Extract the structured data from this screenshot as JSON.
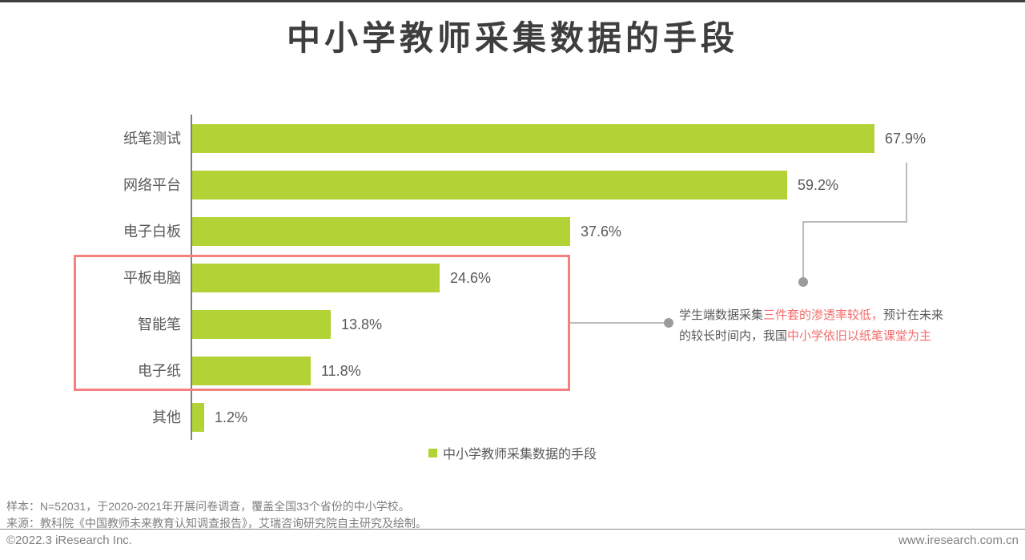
{
  "title": "中小学教师采集数据的手段",
  "chart_data": {
    "type": "bar",
    "orientation": "horizontal",
    "title": "中小学教师采集数据的手段",
    "categories": [
      "纸笔测试",
      "网络平台",
      "电子白板",
      "平板电脑",
      "智能笔",
      "电子纸",
      "其他"
    ],
    "values": [
      67.9,
      59.2,
      37.6,
      24.6,
      13.8,
      11.8,
      1.2
    ],
    "value_labels": [
      "67.9%",
      "59.2%",
      "37.6%",
      "24.6%",
      "13.8%",
      "11.8%",
      "1.2%"
    ],
    "unit": "%",
    "xlim": [
      0,
      75
    ],
    "grid": false,
    "bar_color": "#b2d235",
    "highlighted_categories": [
      "平板电脑",
      "智能笔",
      "电子纸"
    ],
    "legend_position": "bottom-center"
  },
  "annotation": {
    "lines": [
      [
        {
          "text": "学生端数据采集",
          "color": "gray"
        },
        {
          "text": "三件套的渗透率较低，",
          "color": "red"
        },
        {
          "text": "预计在未来",
          "color": "gray"
        }
      ],
      [
        {
          "text": "的较长时间内，我国",
          "color": "gray"
        },
        {
          "text": "中小学依旧以纸笔课堂为主",
          "color": "red"
        }
      ]
    ]
  },
  "legend": {
    "label": "中小学教师采集数据的手段",
    "swatch_color": "#b2d235"
  },
  "footer": {
    "sample": "样本：N=52031，于2020-2021年开展问卷调查，覆盖全国33个省份的中小学校。",
    "source": "来源：教科院《中国教师未来教育认知调查报告》，艾瑞咨询研究院自主研究及绘制。",
    "copyright": "©2022.3 iResearch Inc.",
    "website": "www.iresearch.com.cn"
  },
  "colors": {
    "bar_green": "#b2d235",
    "title_text": "#3e3e3e",
    "label_gray": "#595959",
    "footer_gray": "#7f7f7f",
    "annotation_red": "#f56b6b",
    "highlight_box_border": "#f58080",
    "connector_gray": "#a6a6a6",
    "connector_dot": "#9b9b9b"
  }
}
